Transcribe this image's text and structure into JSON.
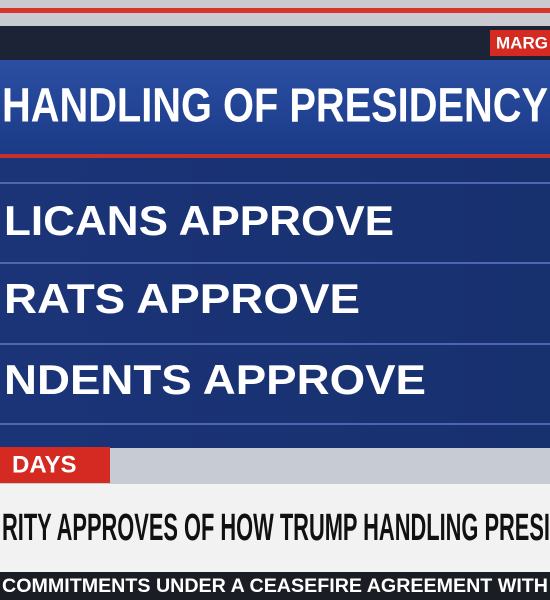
{
  "badge": "MARG",
  "header": {
    "title": "HANDLING OF PRESIDENCY"
  },
  "rows": [
    "LICANS APPROVE",
    "RATS APPROVE",
    "NDENTS APPROVE"
  ],
  "tag": "DAYS",
  "banner": "RITY APPROVES OF HOW TRUMP HANDLING PRESI",
  "ticker": "COMMITMENTS UNDER A CEASEFIRE AGREEMENT WITH"
}
